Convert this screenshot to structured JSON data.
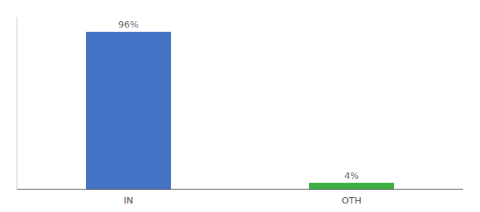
{
  "chart_data": {
    "type": "bar",
    "categories": [
      "IN",
      "OTH"
    ],
    "values": [
      96,
      4
    ],
    "value_labels": [
      "96%",
      "4%"
    ],
    "colors": [
      "#4472c4",
      "#3cb043"
    ],
    "ylim": [
      0,
      105
    ],
    "yticks": [],
    "data_labels": true,
    "tick_labels": "x"
  }
}
